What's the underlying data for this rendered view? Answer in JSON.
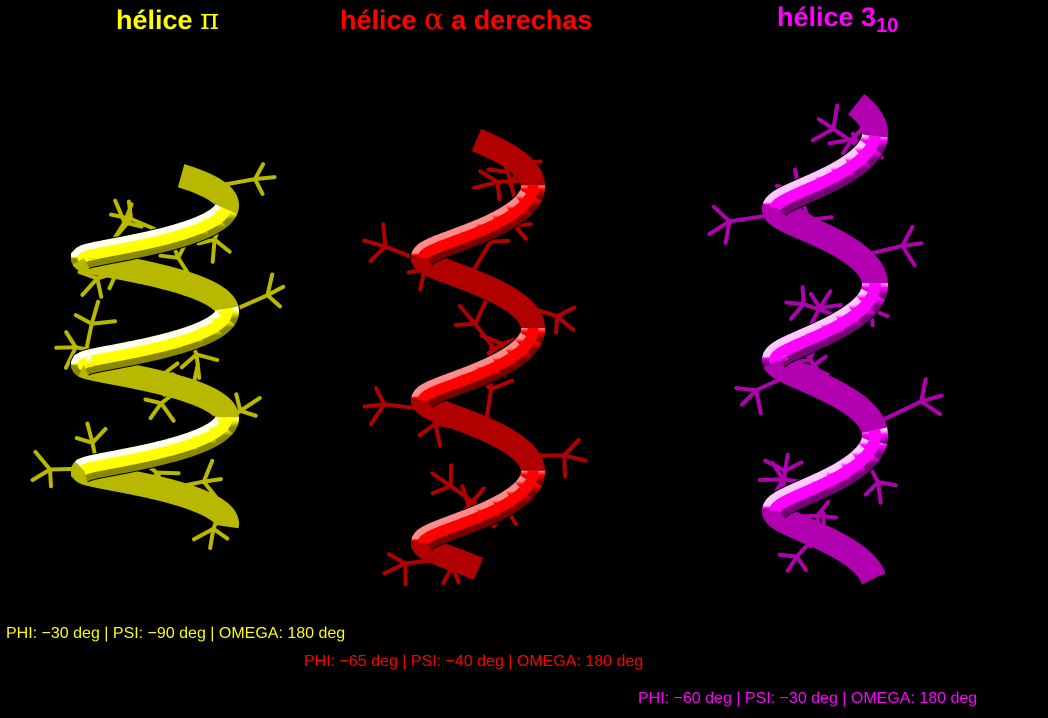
{
  "helices": [
    {
      "title_word": "hélice",
      "title_symbol": "π",
      "title_rest": "",
      "title_sub": "",
      "color": "#ffff00",
      "stick_color": "#b8b800",
      "params": "PHI: −30 deg | PSI: −90 deg | OMEGA: 180 deg"
    },
    {
      "title_word": "hélice",
      "title_symbol": "α",
      "title_rest": "a derechas",
      "title_sub": "",
      "color": "#ff0000",
      "stick_color": "#b00000",
      "params": "PHI: −65 deg | PSI: −40 deg | OMEGA: 180 deg"
    },
    {
      "title_word": "hélice 3",
      "title_symbol": "",
      "title_rest": "",
      "title_sub": "10",
      "color": "#ff00ff",
      "stick_color": "#b000b0",
      "params": "PHI: −60 deg | PSI: −30 deg | OMEGA: 180 deg"
    }
  ]
}
